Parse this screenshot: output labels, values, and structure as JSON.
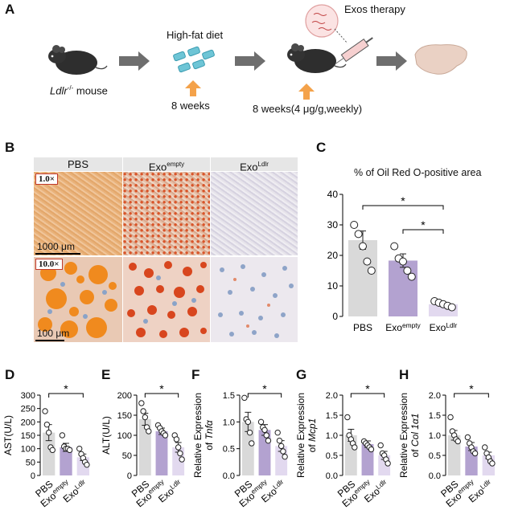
{
  "panelA": {
    "label": "A",
    "mouse_label_italic": "Ldlr",
    "mouse_label_sup": "-/-",
    "mouse_label_rest": " mouse",
    "diet_label": "High-fat diet",
    "diet_duration": "8 weeks",
    "therapy_label": "Exos therapy",
    "therapy_duration": "8 weeks(4 μg/g,weekly)"
  },
  "panelB": {
    "label": "B",
    "col1": "PBS",
    "col2_base": "Exo",
    "col2_sup": "empty",
    "col3_base": "Exo",
    "col3_sup": "Ldlr",
    "mag_low": "1.0×",
    "mag_high": "10.0×",
    "scale_low": "1000 μm",
    "scale_high": "100 μm"
  },
  "panelC": {
    "label": "C",
    "title": "% of Oil Red O-positive area",
    "sig1": "*",
    "sig2": "*"
  },
  "small_panels": [
    {
      "label": "D",
      "ylabel": "AST(U/L)"
    },
    {
      "label": "E",
      "ylabel": "ALT(U/L)"
    },
    {
      "label": "F",
      "ylabel_line1": "Relative Expression",
      "ylabel_pre": "of ",
      "ylabel_gene": "Tnfα"
    },
    {
      "label": "G",
      "ylabel_line1": "Relative Expression",
      "ylabel_pre": "of ",
      "ylabel_gene": "Mcp1"
    },
    {
      "label": "H",
      "ylabel_line1": "Relative Expression",
      "ylabel_pre": "of ",
      "ylabel_gene": "Col 1α1"
    }
  ],
  "colors": {
    "pbs": "#d9d9d9",
    "empty": "#b3a2d0",
    "ldlr": "#e2d9ef",
    "arrow_gray": "#707070",
    "arrow_orange": "#f4a24a"
  },
  "chart_data": [
    {
      "panel": "C",
      "type": "bar",
      "categories": [
        "PBS",
        "Exo empty",
        "Exo Ldlr"
      ],
      "values": [
        25,
        18.3,
        4
      ],
      "errors": [
        3,
        2.2,
        0.6
      ],
      "points": [
        [
          30,
          27,
          23,
          18,
          15
        ],
        [
          23,
          19,
          18,
          15,
          13
        ],
        [
          5,
          4.5,
          4,
          3.5,
          3
        ]
      ],
      "ylim": [
        0,
        40
      ],
      "yticks": [
        0,
        10,
        20,
        30,
        40
      ],
      "significance": [
        [
          "PBS",
          "Exo Ldlr",
          "*"
        ],
        [
          "Exo empty",
          "Exo Ldlr",
          "*"
        ]
      ]
    },
    {
      "panel": "D",
      "type": "bar",
      "categories": [
        "PBS",
        "Exo empty",
        "Exo Ldlr"
      ],
      "values": [
        160,
        105,
        68
      ],
      "errors": [
        30,
        15,
        12
      ],
      "points": [
        [
          240,
          190,
          160,
          105,
          95
        ],
        [
          150,
          108,
          100,
          100,
          95
        ],
        [
          100,
          80,
          65,
          50,
          40
        ]
      ],
      "ylim": [
        0,
        300
      ],
      "yticks": [
        0,
        50,
        100,
        150,
        200,
        250,
        300
      ],
      "significance": [
        [
          "PBS",
          "Exo Ldlr",
          "*"
        ]
      ]
    },
    {
      "panel": "E",
      "type": "bar",
      "categories": [
        "PBS",
        "Exo empty",
        "Exo Ldlr"
      ],
      "values": [
        140,
        110,
        70
      ],
      "errors": [
        15,
        8,
        12
      ],
      "points": [
        [
          180,
          160,
          145,
          120,
          110
        ],
        [
          125,
          118,
          110,
          105,
          100
        ],
        [
          100,
          90,
          70,
          55,
          40
        ]
      ],
      "ylim": [
        0,
        200
      ],
      "yticks": [
        0,
        50,
        100,
        150,
        200
      ],
      "significance": [
        [
          "PBS",
          "Exo Ldlr",
          "*"
        ]
      ]
    },
    {
      "panel": "F",
      "type": "bar",
      "categories": [
        "PBS",
        "Exo empty",
        "Exo Ldlr"
      ],
      "values": [
        1.0,
        0.85,
        0.55
      ],
      "errors": [
        0.18,
        0.1,
        0.1
      ],
      "points": [
        [
          1.45,
          1.05,
          1.0,
          0.8,
          0.6
        ],
        [
          1.0,
          0.9,
          0.85,
          0.75,
          0.65
        ],
        [
          0.8,
          0.65,
          0.55,
          0.45,
          0.35
        ]
      ],
      "ylim": [
        0,
        1.5
      ],
      "yticks": [
        0,
        0.5,
        1.0,
        1.5
      ],
      "significance": [
        [
          "PBS",
          "Exo Ldlr",
          "*"
        ]
      ]
    },
    {
      "panel": "G",
      "type": "bar",
      "categories": [
        "PBS",
        "Exo empty",
        "Exo Ldlr"
      ],
      "values": [
        1.0,
        0.78,
        0.5
      ],
      "errors": [
        0.15,
        0.08,
        0.1
      ],
      "points": [
        [
          1.45,
          1.0,
          0.9,
          0.8,
          0.7
        ],
        [
          0.85,
          0.8,
          0.75,
          0.7,
          0.65
        ],
        [
          0.75,
          0.55,
          0.5,
          0.4,
          0.3
        ]
      ],
      "ylim": [
        0,
        2.0
      ],
      "yticks": [
        0,
        0.5,
        1.0,
        1.5,
        2.0
      ],
      "significance": [
        [
          "PBS",
          "Exo Ldlr",
          "*"
        ]
      ]
    },
    {
      "panel": "H",
      "type": "bar",
      "categories": [
        "PBS",
        "Exo empty",
        "Exo Ldlr"
      ],
      "values": [
        1.0,
        0.72,
        0.5
      ],
      "errors": [
        0.12,
        0.1,
        0.08
      ],
      "points": [
        [
          1.45,
          1.1,
          1.0,
          0.9,
          0.85
        ],
        [
          0.95,
          0.8,
          0.7,
          0.6,
          0.55
        ],
        [
          0.7,
          0.55,
          0.45,
          0.35,
          0.3
        ]
      ],
      "ylim": [
        0,
        2.0
      ],
      "yticks": [
        0,
        0.5,
        1.0,
        1.5,
        2.0
      ],
      "significance": [
        [
          "PBS",
          "Exo Ldlr",
          "*"
        ]
      ]
    }
  ]
}
